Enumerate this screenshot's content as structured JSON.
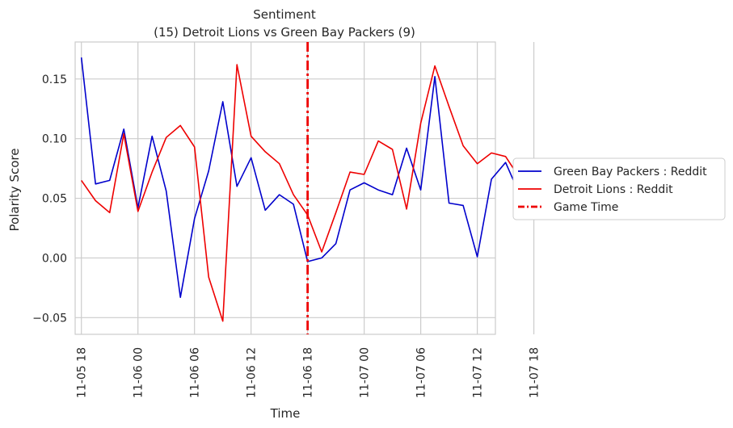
{
  "chart_data": {
    "type": "line",
    "title": "Sentiment",
    "subtitle": "(15) Detroit Lions vs Green Bay Packers (9)",
    "xlabel": "Time",
    "ylabel": "Polarity Score",
    "xlim": [
      0.89,
      8.32
    ],
    "ylim": [
      -0.064,
      0.181
    ],
    "x_ticks": [
      1,
      2,
      3,
      4,
      5,
      6,
      7,
      8,
      9
    ],
    "x_tick_labels": [
      "11-05 18",
      "11-06 00",
      "11-06 06",
      "11-06 12",
      "11-06 18",
      "11-07 00",
      "11-07 06",
      "11-07 12",
      "11-07 18"
    ],
    "y_ticks": [
      -0.05,
      0.0,
      0.05,
      0.1,
      0.15
    ],
    "y_tick_labels": [
      "−0.05",
      "0.00",
      "0.05",
      "0.10",
      "0.15"
    ],
    "grid": true,
    "legend_position": "outside-right",
    "series": [
      {
        "name": "Green Bay Packers : Reddit",
        "color": "#0000cc",
        "x": [
          1.0,
          1.25,
          1.5,
          1.75,
          2.0,
          2.25,
          2.5,
          2.75,
          3.0,
          3.25,
          3.5,
          3.75,
          4.0,
          4.25,
          4.5,
          4.75,
          5.0,
          5.25,
          5.5,
          5.75,
          6.0,
          6.25,
          6.5,
          6.75,
          7.0,
          7.25,
          7.5,
          7.75,
          8.0,
          8.25,
          8.5,
          8.75
        ],
        "values": [
          0.168,
          0.062,
          0.065,
          0.108,
          0.042,
          0.102,
          0.056,
          -0.033,
          0.033,
          0.073,
          0.131,
          0.06,
          0.084,
          0.04,
          0.053,
          0.045,
          -0.003,
          0.0,
          0.012,
          0.057,
          0.063,
          0.057,
          0.053,
          0.092,
          0.057,
          0.152,
          0.046,
          0.044,
          0.001,
          0.066,
          0.08,
          0.053
        ]
      },
      {
        "name": "Detroit Lions : Reddit",
        "color": "#ee0000",
        "x": [
          1.0,
          1.25,
          1.5,
          1.75,
          2.0,
          2.25,
          2.5,
          2.75,
          3.0,
          3.25,
          3.5,
          3.75,
          4.0,
          4.25,
          4.5,
          4.75,
          5.0,
          5.25,
          5.5,
          5.75,
          6.0,
          6.25,
          6.5,
          6.75,
          7.0,
          7.25,
          7.5,
          7.75,
          8.0,
          8.25,
          8.5,
          8.75
        ],
        "values": [
          0.065,
          0.048,
          0.038,
          0.104,
          0.039,
          0.072,
          0.101,
          0.111,
          0.093,
          -0.016,
          -0.053,
          0.162,
          0.102,
          0.089,
          0.079,
          0.053,
          0.036,
          0.005,
          0.038,
          0.072,
          0.07,
          0.098,
          0.091,
          0.041,
          0.113,
          0.161,
          0.127,
          0.094,
          0.079,
          0.088,
          0.085,
          0.067
        ]
      }
    ],
    "annotations": [
      {
        "name": "Game Time",
        "type": "vline",
        "x": 5.0,
        "color": "#ee0000",
        "style": "dashdot"
      }
    ]
  }
}
